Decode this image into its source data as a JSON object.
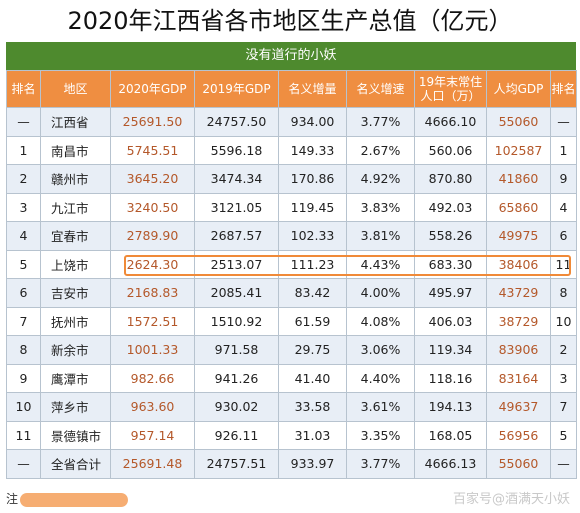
{
  "title": "2020年江西省各市地区生产总值（亿元）",
  "subtitle": "没有道行的小妖",
  "headers": [
    "排名",
    "地区",
    "2020年GDP",
    "2019年GDP",
    "名义增量",
    "名义增速",
    "19年末常住人口（万）",
    "人均GDP",
    "排名"
  ],
  "rows": [
    [
      "—",
      "江西省",
      "25691.50",
      "24757.50",
      "934.00",
      "3.77%",
      "4666.10",
      "55060",
      "—"
    ],
    [
      "1",
      "南昌市",
      "5745.51",
      "5596.18",
      "149.33",
      "2.67%",
      "560.06",
      "102587",
      "1"
    ],
    [
      "2",
      "赣州市",
      "3645.20",
      "3474.34",
      "170.86",
      "4.92%",
      "870.80",
      "41860",
      "9"
    ],
    [
      "3",
      "九江市",
      "3240.50",
      "3121.05",
      "119.45",
      "3.83%",
      "492.03",
      "65860",
      "4"
    ],
    [
      "4",
      "宜春市",
      "2789.90",
      "2687.57",
      "102.33",
      "3.81%",
      "558.26",
      "49975",
      "6"
    ],
    [
      "5",
      "上饶市",
      "2624.30",
      "2513.07",
      "111.23",
      "4.43%",
      "683.30",
      "38406",
      "11"
    ],
    [
      "6",
      "吉安市",
      "2168.83",
      "2085.41",
      "83.42",
      "4.00%",
      "495.97",
      "43729",
      "8"
    ],
    [
      "7",
      "抚州市",
      "1572.51",
      "1510.92",
      "61.59",
      "4.08%",
      "406.03",
      "38729",
      "10"
    ],
    [
      "8",
      "新余市",
      "1001.33",
      "971.58",
      "29.75",
      "3.06%",
      "119.34",
      "83906",
      "2"
    ],
    [
      "9",
      "鹰潭市",
      "982.66",
      "941.26",
      "41.40",
      "4.40%",
      "118.16",
      "83164",
      "3"
    ],
    [
      "10",
      "萍乡市",
      "963.60",
      "930.02",
      "33.58",
      "3.61%",
      "194.13",
      "49637",
      "7"
    ],
    [
      "11",
      "景德镇市",
      "957.14",
      "926.11",
      "31.03",
      "3.35%",
      "168.05",
      "56956",
      "5"
    ],
    [
      "—",
      "全省合计",
      "25691.48",
      "24757.51",
      "933.97",
      "3.77%",
      "4666.13",
      "55060",
      "—"
    ]
  ],
  "note_label": "注",
  "watermark": "百家号@酒满天小妖",
  "colors": {
    "header_bg": "#ef8e41",
    "subtitle_bg": "#4e8a2e",
    "value_text": "#b4582a",
    "highlight": "#f08a38"
  }
}
